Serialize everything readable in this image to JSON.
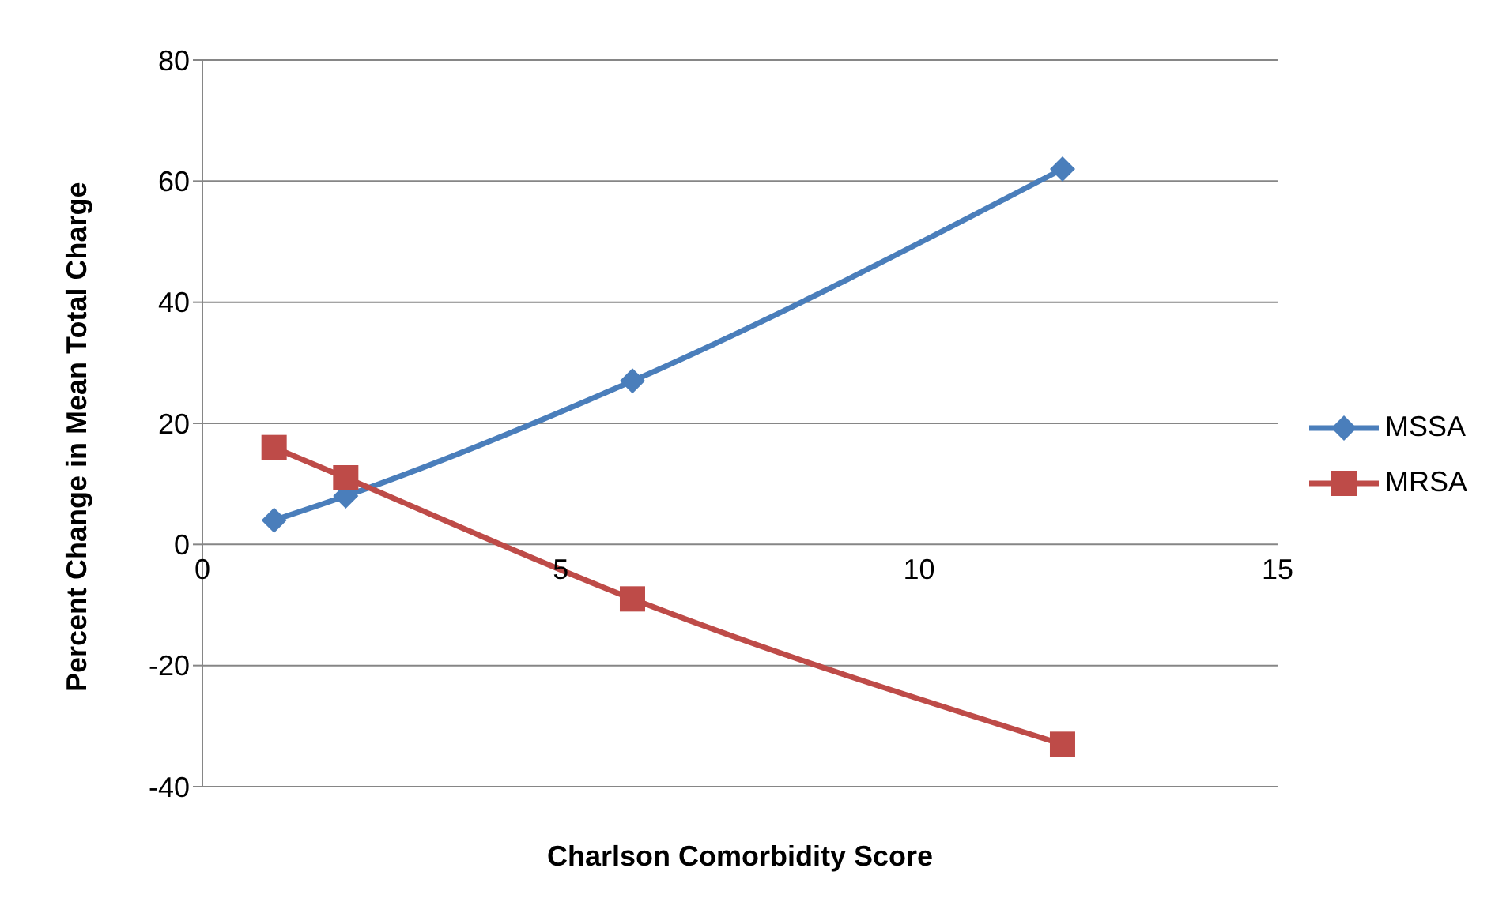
{
  "chart_data": {
    "type": "line",
    "xlabel": "Charlson Comorbidity Score",
    "ylabel": "Percent Change in Mean Total Charge",
    "x": [
      1,
      2,
      6,
      12
    ],
    "series": [
      {
        "name": "MSSA",
        "color": "#4a7ebb",
        "values": [
          4,
          8,
          27,
          62
        ],
        "marker": "diamond"
      },
      {
        "name": "MRSA",
        "color": "#be4b48",
        "values": [
          16,
          11,
          -9,
          -33
        ],
        "marker": "square"
      }
    ],
    "xlim": [
      0,
      15
    ],
    "xticks": [
      0,
      5,
      10,
      15
    ],
    "ylim": [
      -40,
      80
    ],
    "yticks": [
      -40,
      -20,
      0,
      20,
      40,
      60,
      80
    ],
    "grid": "y",
    "legend": "right",
    "line_style": "solid"
  }
}
